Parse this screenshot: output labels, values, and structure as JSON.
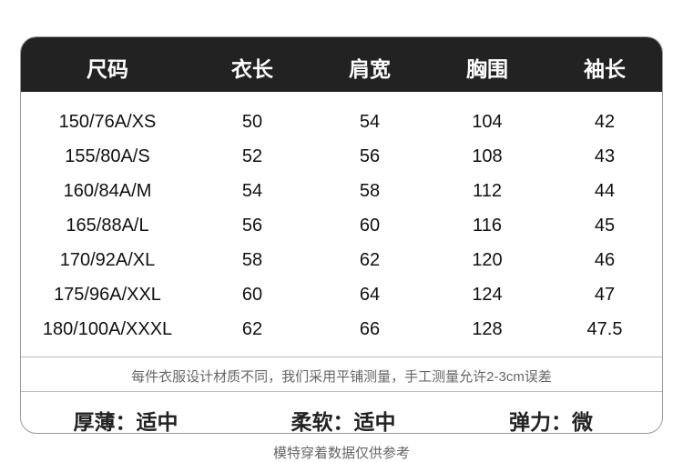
{
  "headers": [
    "尺码",
    "衣长",
    "肩宽",
    "胸围",
    "袖长"
  ],
  "rows": [
    [
      "150/76A/XS",
      "50",
      "54",
      "104",
      "42"
    ],
    [
      "155/80A/S",
      "52",
      "56",
      "108",
      "43"
    ],
    [
      "160/84A/M",
      "54",
      "58",
      "112",
      "44"
    ],
    [
      "165/88A/L",
      "56",
      "60",
      "116",
      "45"
    ],
    [
      "170/92A/XL",
      "58",
      "62",
      "120",
      "46"
    ],
    [
      "175/96A/XXL",
      "60",
      "64",
      "124",
      "47"
    ],
    [
      "180/100A/XXXL",
      "62",
      "66",
      "128",
      "47.5"
    ]
  ],
  "note": "每件衣服设计材质不同，我们采用平铺测量，手工测量允许2-3cm误差",
  "properties": [
    "厚薄：适中",
    "柔软：适中",
    "弹力：微弹"
  ],
  "footer": "模特穿着数据仅供参考"
}
